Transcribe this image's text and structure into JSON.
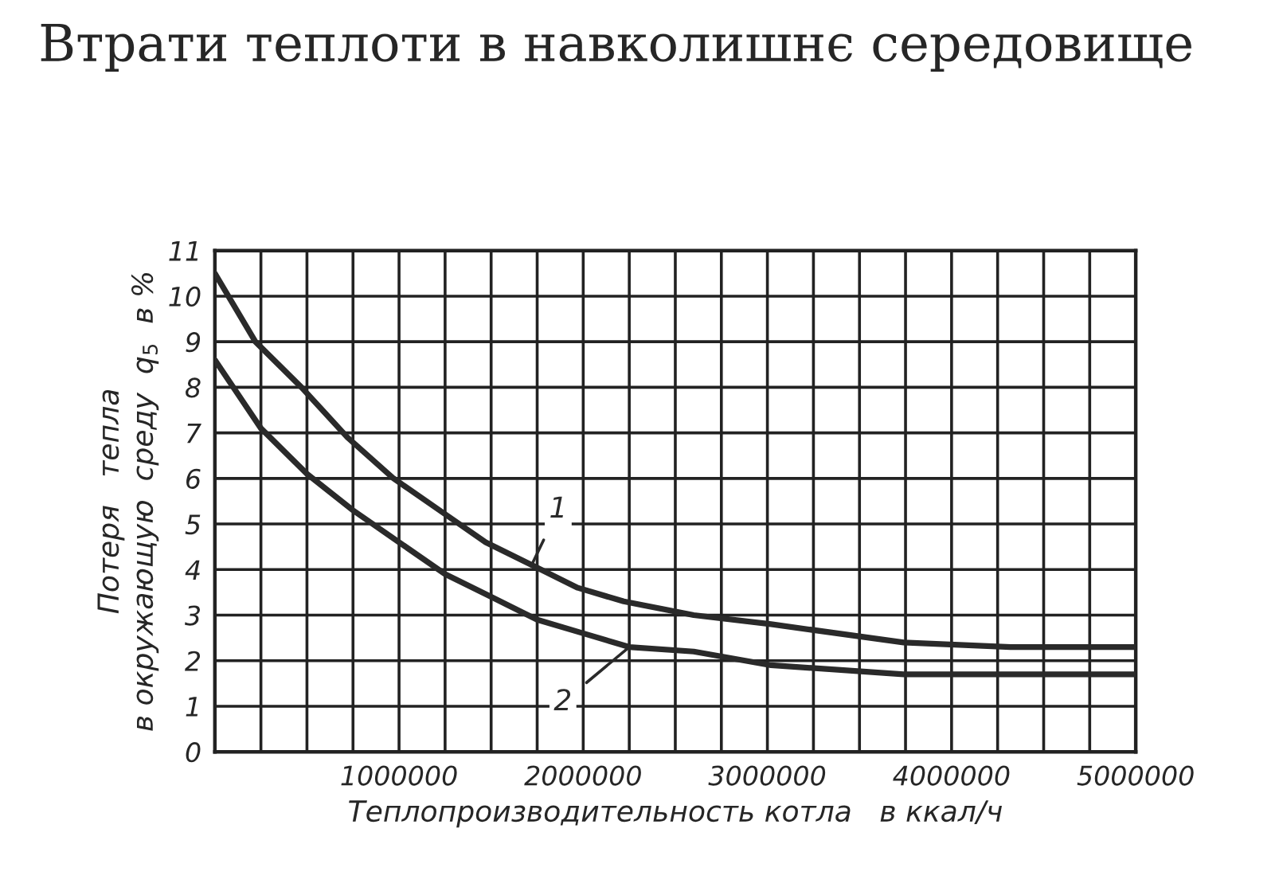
{
  "chart_data": {
    "type": "line",
    "title": "Втрати теплоти в навколишнє середовище",
    "xlabel": "Теплопроизводительность котла   в ккал/ч",
    "ylabel": "Потеря   тепла\nв окружающую  среду  q$_{5}$  в %",
    "series": [
      {
        "name": "1",
        "color": "#2a2a2a",
        "x": [
          0,
          220000,
          470000,
          720000,
          970000,
          1220000,
          1470000,
          1720000,
          1970000,
          2220000,
          2600000,
          3020000,
          3740000,
          4320000,
          5000000
        ],
        "values": [
          10.5,
          9.0,
          8.0,
          6.9,
          6.0,
          5.3,
          4.6,
          4.1,
          3.6,
          3.3,
          3.0,
          2.8,
          2.4,
          2.3,
          2.3
        ]
      },
      {
        "name": "2",
        "color": "#2a2a2a",
        "x": [
          0,
          250000,
          500000,
          750000,
          1000000,
          1250000,
          1500000,
          1750000,
          2000000,
          2250000,
          2600000,
          3020000,
          3740000,
          4320000,
          5000000
        ],
        "values": [
          8.6,
          7.1,
          6.1,
          5.3,
          4.6,
          3.9,
          3.4,
          2.9,
          2.6,
          2.3,
          2.2,
          1.9,
          1.7,
          1.7,
          1.7
        ]
      }
    ],
    "xlim": [
      0,
      5000000
    ],
    "xticks": [
      {
        "value": 250000,
        "label": null
      },
      {
        "value": 500000,
        "label": null
      },
      {
        "value": 750000,
        "label": null
      },
      1000000,
      {
        "value": 1250000,
        "label": null
      },
      {
        "value": 1500000,
        "label": null
      },
      {
        "value": 1750000,
        "label": null
      },
      2000000,
      {
        "value": 2250000,
        "label": null
      },
      {
        "value": 2500000,
        "label": null
      },
      {
        "value": 2750000,
        "label": null
      },
      3000000,
      {
        "value": 3250000,
        "label": null
      },
      {
        "value": 3500000,
        "label": null
      },
      {
        "value": 3750000,
        "label": null
      },
      4000000,
      {
        "value": 4250000,
        "label": null
      },
      {
        "value": 4500000,
        "label": null
      },
      {
        "value": 4750000,
        "label": null
      },
      5000000
    ],
    "ylim": [
      0,
      11
    ],
    "yticks": [
      0,
      1,
      2,
      3,
      4,
      5,
      6,
      7,
      8,
      9,
      10,
      11
    ],
    "grid": true,
    "legend": false,
    "marker": "none",
    "line_style": "solid"
  }
}
